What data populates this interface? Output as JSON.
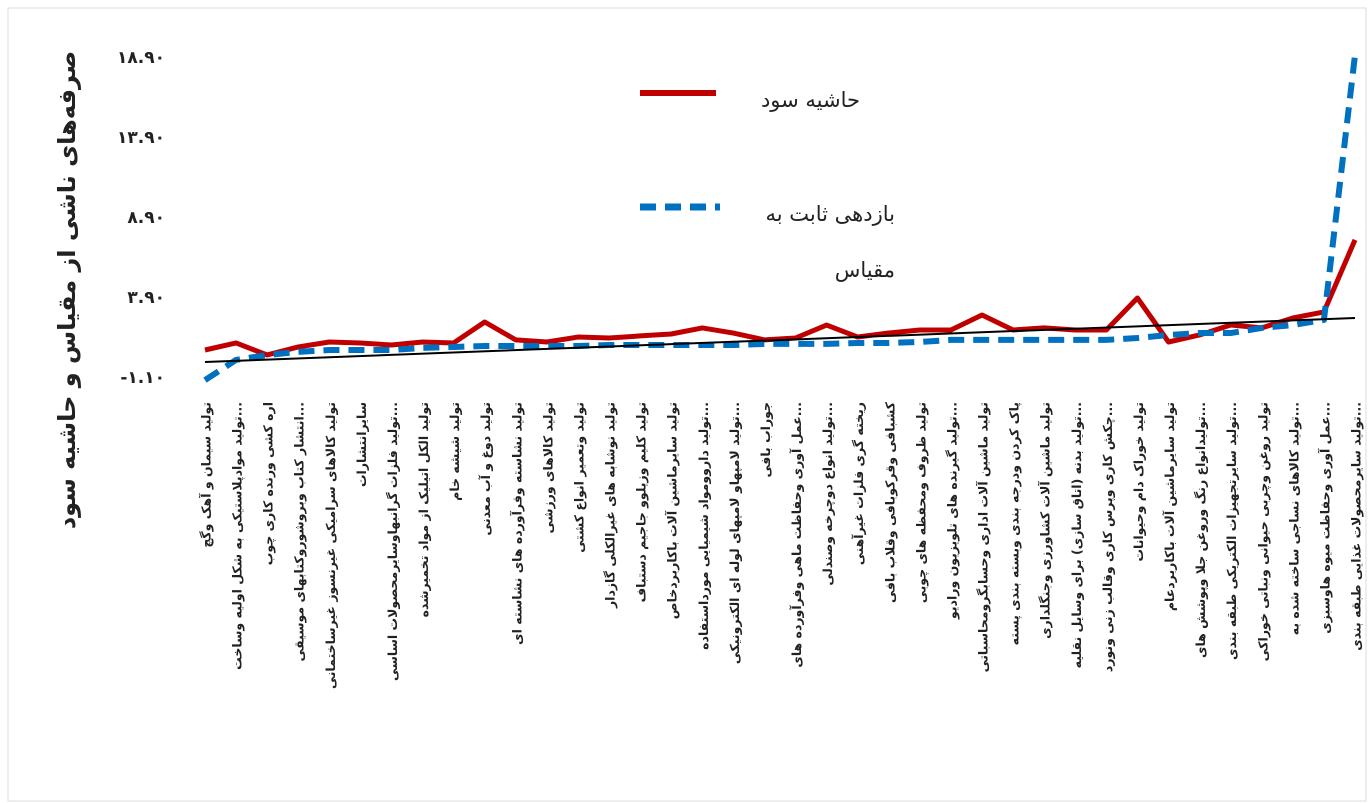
{
  "chart_data": {
    "type": "line",
    "y_label": "صرفه‌های ناشی از مقیاس و حاشیه سود",
    "categories": [
      "تولید سیمان و آهک وگچ",
      "تولید موادپلاستیکی به شکل اولیه وساخت...",
      "اره کشی ورنده کاری چوب",
      "انتشار کتاب وبروشوروکتابهای موسیقی...",
      "تولید کالاهای سرامیکی غیرنسوز غیرساختمانی",
      "سایرانتشارات",
      "تولید فلزات گرانبهاوسایرمحصولات اساسی...",
      "تولید الکل اتیلیک از مواد تخمیرشده",
      "تولید شیشه خام",
      "تولید دوغ و آب معدنی",
      "تولید نشاسته وفرآورده های نشاسته ای",
      "تولید کالاهای ورزشی",
      "تولید وتعمیر انواع کشتی",
      "تولید نوشابه های غیرالکلی گازدار",
      "تولید کلیم وزیلوو جاجیم دستباف",
      "تولید سایرماشین آلات باکاربردخاص",
      "تولید داروومواد شیمیایی مورداستفاده...",
      "تولید لامپهاو لامپهای لوله ای الکترونیکی...",
      "جوراب بافی",
      "عمل آوری وحفاظت ماهی وفرآورده های...",
      "تولید انواع دوچرخه وصندلی...",
      "ریخته گری فلزات غیرآهنی",
      "کشبافی وقرکوبافی وقلاب بافی",
      "تولید ظروف ومحفظه های چوبی",
      "تولید گیرنده های تلویزیون ورادیو...",
      "تولید ماشین آلات اداری وحسابگرومحاسباتی",
      "پاک کردن ودرجه بندی وبسته بندی پسته",
      "تولید ماشین آلات کشاورزی وجنگلداری",
      "تولید بدنه (اتاق سازی) برای وسایل نقلیه...",
      "چکش کاری وپرس کاری وقالب زنی ونورد...",
      "تولید خوراک دام وحیوانات",
      "تولید سایرماشین آلات باکاربردعام",
      "تولیدانواع رنگ وروغن جلا وپوشش های...",
      "تولید سایرتجهیزات الکتریکی طبقه بندی...",
      "تولید روغن وچربی حیوانی ونباتی خوراکی",
      "تولید کالاهای نساجی ساخته شده به...",
      "عمل آوری وحفاظت میوه هاوسبزی...",
      "تولید سایرمحصولات غذایی طبقه بندی..."
    ],
    "series": [
      {
        "name": "حاشیه سود",
        "color": "#c00000",
        "dash": false,
        "values": [
          0.65,
          1.09,
          0.34,
          0.84,
          1.15,
          1.09,
          0.96,
          1.15,
          1.09,
          2.4,
          1.28,
          1.15,
          1.46,
          1.4,
          1.53,
          1.65,
          2.03,
          1.71,
          1.28,
          1.4,
          2.21,
          1.46,
          1.71,
          1.9,
          1.9,
          2.84,
          1.9,
          2.03,
          1.9,
          1.9,
          3.9,
          1.15,
          1.59,
          2.21,
          2.03,
          2.65,
          3.03,
          7.53
        ]
      },
      {
        "name": "بازدهی ثابت به مقیاس",
        "color": "#0070c0",
        "dash": true,
        "values": [
          -1.23,
          0.03,
          0.34,
          0.53,
          0.65,
          0.65,
          0.65,
          0.78,
          0.84,
          0.9,
          0.9,
          0.9,
          0.9,
          0.96,
          0.96,
          0.96,
          0.96,
          0.96,
          1.03,
          1.03,
          1.03,
          1.09,
          1.09,
          1.15,
          1.28,
          1.28,
          1.28,
          1.28,
          1.28,
          1.28,
          1.4,
          1.59,
          1.71,
          1.71,
          2.03,
          2.21,
          2.53,
          19.09
        ]
      }
    ],
    "trendline": {
      "color": "#000000",
      "values": [
        -0.1,
        2.65
      ]
    },
    "ylim": [
      -1.1,
      18.9
    ],
    "yticks": [
      {
        "value": -1.1,
        "label": "-۱.۱۰"
      },
      {
        "value": 3.9,
        "label": "۳.۹۰"
      },
      {
        "value": 8.9,
        "label": "۸.۹۰"
      },
      {
        "value": 13.9,
        "label": "۱۳.۹۰"
      },
      {
        "value": 18.9,
        "label": "۱۸.۹۰"
      }
    ],
    "grid": false
  }
}
